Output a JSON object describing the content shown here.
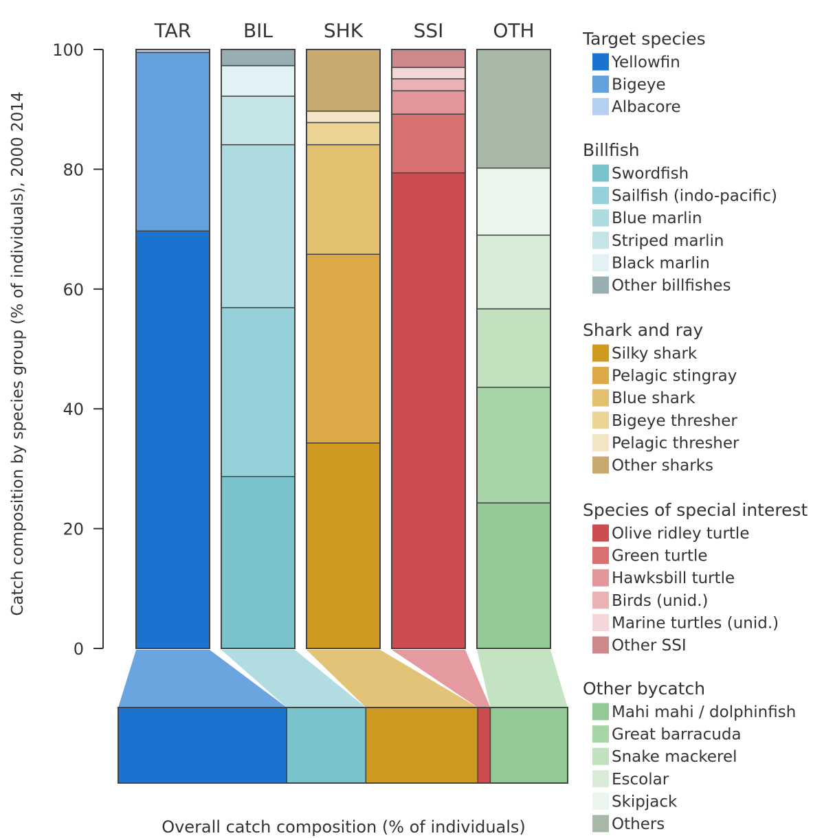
{
  "chart_data": {
    "type": "bar",
    "subtype": "stacked-percent",
    "ylabel": "Catch composition by species group (% of individuals), 2000 2014",
    "xlabel": "Overall catch composition (% of individuals)",
    "ylim": [
      0,
      100
    ],
    "yticks": [
      "0",
      "20",
      "40",
      "60",
      "80",
      "100"
    ],
    "categories": [
      "TAR",
      "BIL",
      "SHK",
      "SSI",
      "OTH"
    ],
    "groups": [
      {
        "code": "TAR",
        "name": "Target species",
        "overall_share": 37.5,
        "color": "#1a73cf",
        "species": [
          {
            "name": "Yellowfin",
            "value": 69.7,
            "color": "#1a73cf"
          },
          {
            "name": "Bigeye",
            "value": 29.8,
            "color": "#63a0de"
          },
          {
            "name": "Albacore",
            "value": 0.5,
            "color": "#b4cff0"
          }
        ]
      },
      {
        "code": "BIL",
        "name": "Billfish",
        "overall_share": 17.6,
        "color": "#78c3cc",
        "species": [
          {
            "name": "Swordfish",
            "value": 28.7,
            "color": "#78c3cc"
          },
          {
            "name": "Sailfish (indo-pacific)",
            "value": 28.2,
            "color": "#96d0d8"
          },
          {
            "name": "Blue marlin",
            "value": 27.2,
            "color": "#addbe0"
          },
          {
            "name": "Striped marlin",
            "value": 8.1,
            "color": "#c4e4e8"
          },
          {
            "name": "Black marlin",
            "value": 5.1,
            "color": "#e2f1f4"
          },
          {
            "name": "Other billfishes",
            "value": 2.7,
            "color": "#98aeb2"
          }
        ]
      },
      {
        "code": "SHK",
        "name": "Shark and ray",
        "overall_share": 24.9,
        "color": "#cf9a1f",
        "species": [
          {
            "name": "Silky shark",
            "value": 34.3,
            "color": "#cf9a1f"
          },
          {
            "name": "Pelagic stingray",
            "value": 31.5,
            "color": "#dba945"
          },
          {
            "name": "Blue shark",
            "value": 18.3,
            "color": "#e2c070"
          },
          {
            "name": "Bigeye thresher",
            "value": 3.7,
            "color": "#ead393"
          },
          {
            "name": "Pelagic thresher",
            "value": 1.9,
            "color": "#f2e6c4"
          },
          {
            "name": "Other sharks",
            "value": 10.3,
            "color": "#c8a96e"
          }
        ]
      },
      {
        "code": "SSI",
        "name": "Species of special interest",
        "overall_share": 2.8,
        "color": "#cd4c4f",
        "species": [
          {
            "name": "Olive ridley turtle",
            "value": 79.4,
            "color": "#cd4c4f"
          },
          {
            "name": "Green turtle",
            "value": 9.8,
            "color": "#d97070"
          },
          {
            "name": "Hawksbill turtle",
            "value": 3.9,
            "color": "#e3959a"
          },
          {
            "name": "Birds (unid.)",
            "value": 2.0,
            "color": "#ebb2b4"
          },
          {
            "name": "Marine turtles (unid.)",
            "value": 1.9,
            "color": "#f3d6d7"
          },
          {
            "name": "Other SSI",
            "value": 3.0,
            "color": "#cc898b"
          }
        ]
      },
      {
        "code": "OTH",
        "name": "Other bycatch",
        "overall_share": 17.2,
        "color": "#92c994",
        "species": [
          {
            "name": "Mahi mahi / dolphinfish",
            "value": 24.3,
            "color": "#92c994"
          },
          {
            "name": "Great barracuda",
            "value": 19.3,
            "color": "#a8d5a7"
          },
          {
            "name": "Snake mackerel",
            "value": 13.1,
            "color": "#c1e1bf"
          },
          {
            "name": "Escolar",
            "value": 12.3,
            "color": "#d9ecd8"
          },
          {
            "name": "Skipjack",
            "value": 11.2,
            "color": "#ecf5ec"
          },
          {
            "name": "Others",
            "value": 19.8,
            "color": "#a7b9a6"
          }
        ]
      }
    ],
    "grid": false,
    "legend": "right",
    "legend_title_text": {
      "TAR": "Target species",
      "BIL": "Billfish",
      "SHK": "Shark and ray",
      "SSI": "Species of special interest",
      "OTH": "Other bycatch"
    }
  }
}
